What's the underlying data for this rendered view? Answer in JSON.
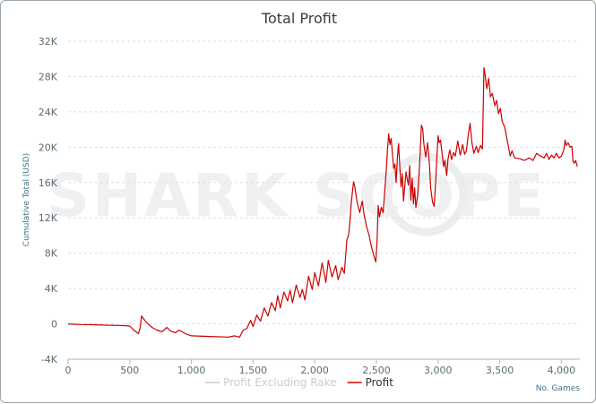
{
  "watermark": "SHARK SCOPE",
  "chart_data": {
    "type": "line",
    "title": "Total Profit",
    "ylabel": "Cumulative Total (USD)",
    "xlabel": "No. Games",
    "xlim": [
      0,
      4150
    ],
    "ylim": [
      -4000,
      32000
    ],
    "y_ticks": [
      -4000,
      0,
      4000,
      8000,
      12000,
      16000,
      20000,
      24000,
      28000,
      32000
    ],
    "y_tick_labels": [
      "-4K",
      "0",
      "4K",
      "8K",
      "12K",
      "16K",
      "20K",
      "24K",
      "28K",
      "32K"
    ],
    "x_ticks": [
      0,
      500,
      1000,
      1500,
      2000,
      2500,
      3000,
      3500,
      4000
    ],
    "x_tick_labels": [
      "0",
      "500",
      "1,000",
      "1,500",
      "2,000",
      "2,500",
      "3,000",
      "3,500",
      "4,000"
    ],
    "grid": true,
    "legend_position": "bottom-center",
    "series": [
      {
        "name": "Profit Excluding Rake",
        "color": "#cccccc",
        "visible": false,
        "points": []
      },
      {
        "name": "Profit",
        "color": "#cc0000",
        "visible": true,
        "points": [
          [
            0,
            0
          ],
          [
            50,
            -50
          ],
          [
            100,
            -80
          ],
          [
            200,
            -100
          ],
          [
            300,
            -150
          ],
          [
            400,
            -180
          ],
          [
            450,
            -200
          ],
          [
            500,
            -250
          ],
          [
            540,
            -800
          ],
          [
            570,
            -1100
          ],
          [
            585,
            -400
          ],
          [
            595,
            900
          ],
          [
            610,
            600
          ],
          [
            640,
            100
          ],
          [
            680,
            -400
          ],
          [
            720,
            -700
          ],
          [
            760,
            -900
          ],
          [
            800,
            -400
          ],
          [
            830,
            -800
          ],
          [
            870,
            -1000
          ],
          [
            900,
            -700
          ],
          [
            950,
            -1100
          ],
          [
            1000,
            -1350
          ],
          [
            1100,
            -1400
          ],
          [
            1200,
            -1450
          ],
          [
            1300,
            -1500
          ],
          [
            1350,
            -1350
          ],
          [
            1390,
            -1500
          ],
          [
            1420,
            -700
          ],
          [
            1450,
            -500
          ],
          [
            1480,
            400
          ],
          [
            1500,
            -300
          ],
          [
            1530,
            1000
          ],
          [
            1560,
            300
          ],
          [
            1590,
            1800
          ],
          [
            1620,
            900
          ],
          [
            1650,
            2400
          ],
          [
            1680,
            1500
          ],
          [
            1700,
            3200
          ],
          [
            1720,
            1800
          ],
          [
            1750,
            3600
          ],
          [
            1780,
            2600
          ],
          [
            1800,
            3800
          ],
          [
            1820,
            2400
          ],
          [
            1850,
            4400
          ],
          [
            1880,
            3000
          ],
          [
            1900,
            3900
          ],
          [
            1920,
            2700
          ],
          [
            1950,
            5400
          ],
          [
            1980,
            3900
          ],
          [
            2000,
            5800
          ],
          [
            2030,
            4300
          ],
          [
            2060,
            6900
          ],
          [
            2090,
            4700
          ],
          [
            2110,
            7200
          ],
          [
            2140,
            5300
          ],
          [
            2170,
            6600
          ],
          [
            2190,
            5000
          ],
          [
            2220,
            6400
          ],
          [
            2240,
            5700
          ],
          [
            2260,
            9500
          ],
          [
            2275,
            10100
          ],
          [
            2285,
            11500
          ],
          [
            2295,
            13500
          ],
          [
            2305,
            14800
          ],
          [
            2315,
            16100
          ],
          [
            2325,
            15500
          ],
          [
            2345,
            13700
          ],
          [
            2365,
            12600
          ],
          [
            2385,
            13900
          ],
          [
            2400,
            12400
          ],
          [
            2420,
            11000
          ],
          [
            2440,
            10100
          ],
          [
            2460,
            8700
          ],
          [
            2480,
            7700
          ],
          [
            2495,
            7000
          ],
          [
            2505,
            9300
          ],
          [
            2515,
            13400
          ],
          [
            2525,
            12100
          ],
          [
            2540,
            13200
          ],
          [
            2555,
            12600
          ],
          [
            2570,
            15500
          ],
          [
            2580,
            17400
          ],
          [
            2590,
            19800
          ],
          [
            2600,
            21500
          ],
          [
            2610,
            20300
          ],
          [
            2620,
            21000
          ],
          [
            2630,
            19200
          ],
          [
            2640,
            17600
          ],
          [
            2650,
            18100
          ],
          [
            2660,
            16000
          ],
          [
            2670,
            18800
          ],
          [
            2680,
            20400
          ],
          [
            2690,
            17800
          ],
          [
            2700,
            15500
          ],
          [
            2710,
            17000
          ],
          [
            2720,
            13900
          ],
          [
            2740,
            17200
          ],
          [
            2760,
            15700
          ],
          [
            2770,
            17900
          ],
          [
            2780,
            14000
          ],
          [
            2790,
            16500
          ],
          [
            2800,
            13600
          ],
          [
            2810,
            15400
          ],
          [
            2820,
            13200
          ],
          [
            2835,
            14600
          ],
          [
            2845,
            16700
          ],
          [
            2855,
            19300
          ],
          [
            2865,
            22500
          ],
          [
            2875,
            22100
          ],
          [
            2885,
            20400
          ],
          [
            2900,
            18900
          ],
          [
            2915,
            20500
          ],
          [
            2930,
            18200
          ],
          [
            2940,
            15400
          ],
          [
            2955,
            13800
          ],
          [
            2968,
            13300
          ],
          [
            2980,
            15800
          ],
          [
            2990,
            18800
          ],
          [
            3000,
            21300
          ],
          [
            3010,
            20500
          ],
          [
            3020,
            20800
          ],
          [
            3030,
            19600
          ],
          [
            3045,
            17800
          ],
          [
            3055,
            18500
          ],
          [
            3070,
            16800
          ],
          [
            3080,
            18600
          ],
          [
            3095,
            19700
          ],
          [
            3110,
            18600
          ],
          [
            3125,
            19400
          ],
          [
            3140,
            19000
          ],
          [
            3160,
            20700
          ],
          [
            3180,
            19100
          ],
          [
            3200,
            20300
          ],
          [
            3215,
            19200
          ],
          [
            3230,
            19600
          ],
          [
            3245,
            21400
          ],
          [
            3260,
            22700
          ],
          [
            3275,
            20500
          ],
          [
            3290,
            19300
          ],
          [
            3310,
            20100
          ],
          [
            3325,
            19400
          ],
          [
            3345,
            20200
          ],
          [
            3360,
            19800
          ],
          [
            3372,
            29000
          ],
          [
            3382,
            28200
          ],
          [
            3395,
            26600
          ],
          [
            3410,
            27800
          ],
          [
            3425,
            25700
          ],
          [
            3440,
            26100
          ],
          [
            3460,
            24700
          ],
          [
            3475,
            25300
          ],
          [
            3490,
            23800
          ],
          [
            3505,
            24400
          ],
          [
            3520,
            22900
          ],
          [
            3540,
            22300
          ],
          [
            3555,
            21200
          ],
          [
            3570,
            20100
          ],
          [
            3585,
            19000
          ],
          [
            3600,
            19600
          ],
          [
            3620,
            18800
          ],
          [
            3660,
            18700
          ],
          [
            3700,
            18500
          ],
          [
            3740,
            18800
          ],
          [
            3770,
            18500
          ],
          [
            3800,
            19300
          ],
          [
            3830,
            19000
          ],
          [
            3860,
            18800
          ],
          [
            3880,
            19300
          ],
          [
            3900,
            18600
          ],
          [
            3920,
            19100
          ],
          [
            3940,
            18800
          ],
          [
            3960,
            19300
          ],
          [
            3980,
            18800
          ],
          [
            4000,
            19000
          ],
          [
            4020,
            19700
          ],
          [
            4030,
            20800
          ],
          [
            4040,
            20200
          ],
          [
            4055,
            20500
          ],
          [
            4070,
            20000
          ],
          [
            4085,
            20100
          ],
          [
            4095,
            18400
          ],
          [
            4105,
            18200
          ],
          [
            4115,
            18500
          ],
          [
            4130,
            17800
          ]
        ]
      }
    ]
  }
}
